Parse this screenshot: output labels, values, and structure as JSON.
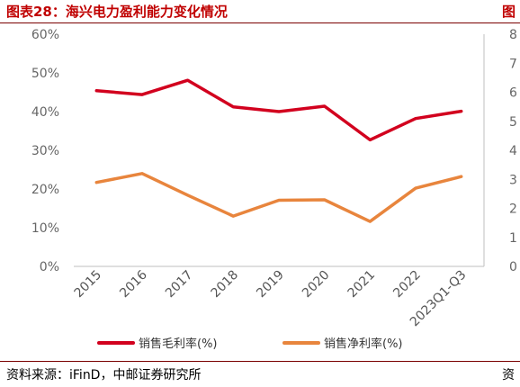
{
  "header": {
    "title": "图表28：海兴电力盈利能力变化情况",
    "title_right": "图"
  },
  "footer": {
    "source": "资料来源：iFinD，中邮证券研究所",
    "source_right": "资"
  },
  "colors": {
    "gross_margin": "#d2001e",
    "net_margin": "#e8853d",
    "accent": "#c00000"
  },
  "chart_data": {
    "type": "line",
    "title": "",
    "xlabel": "",
    "ylabel": "",
    "categories": [
      "2015",
      "2016",
      "2017",
      "2018",
      "2019",
      "2020",
      "2021",
      "2022",
      "2023Q1-Q3"
    ],
    "ylim": [
      0,
      60
    ],
    "y_ticks": [
      "0%",
      "10%",
      "20%",
      "30%",
      "40%",
      "50%",
      "60%"
    ],
    "right_axis_ticks": [
      "0",
      "1",
      "2",
      "3",
      "4",
      "5",
      "6",
      "7",
      "8"
    ],
    "grid": false,
    "legend_position": "bottom",
    "series": [
      {
        "name": "销售毛利率(%)",
        "values": [
          45.4,
          44.4,
          48.1,
          41.2,
          40.0,
          41.4,
          32.7,
          38.2,
          40.1
        ]
      },
      {
        "name": "销售净利率(%)",
        "values": [
          21.7,
          24.0,
          18.4,
          13.0,
          17.1,
          17.2,
          11.6,
          20.2,
          23.2
        ]
      }
    ]
  }
}
